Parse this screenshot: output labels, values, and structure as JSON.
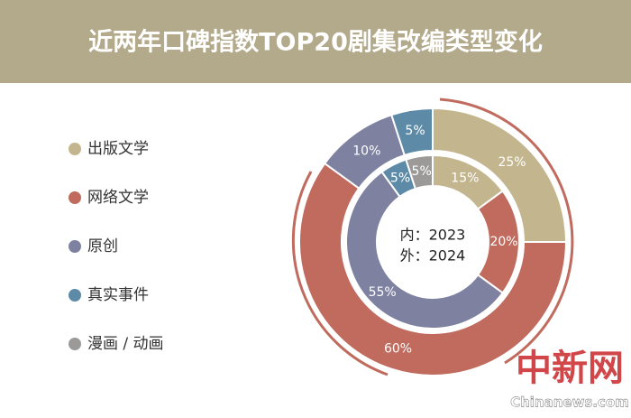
{
  "chart_data": {
    "type": "nested-donut",
    "title": "近两年口碑指数TOP20剧集改编类型变化",
    "categories": [
      "出版文学",
      "网络文学",
      "原创",
      "真实事件",
      "漫画 / 动画"
    ],
    "colors": [
      "#c3b68f",
      "#c06b5e",
      "#7f81a1",
      "#5d8ba7",
      "#9c9a98"
    ],
    "center_text": [
      "内：2023",
      "外：2024"
    ],
    "series": [
      {
        "values": [
          15,
          20,
          55,
          5,
          5
        ],
        "value_labels": [
          "15%",
          "20%",
          "55%",
          "5%",
          "5%"
        ]
      },
      {
        "values": [
          25,
          60,
          10,
          5,
          0
        ],
        "value_labels": [
          "25%",
          "60%",
          "10%",
          "5%",
          null
        ]
      }
    ],
    "watermark": [
      "中新网",
      "Chinanews.com"
    ]
  }
}
